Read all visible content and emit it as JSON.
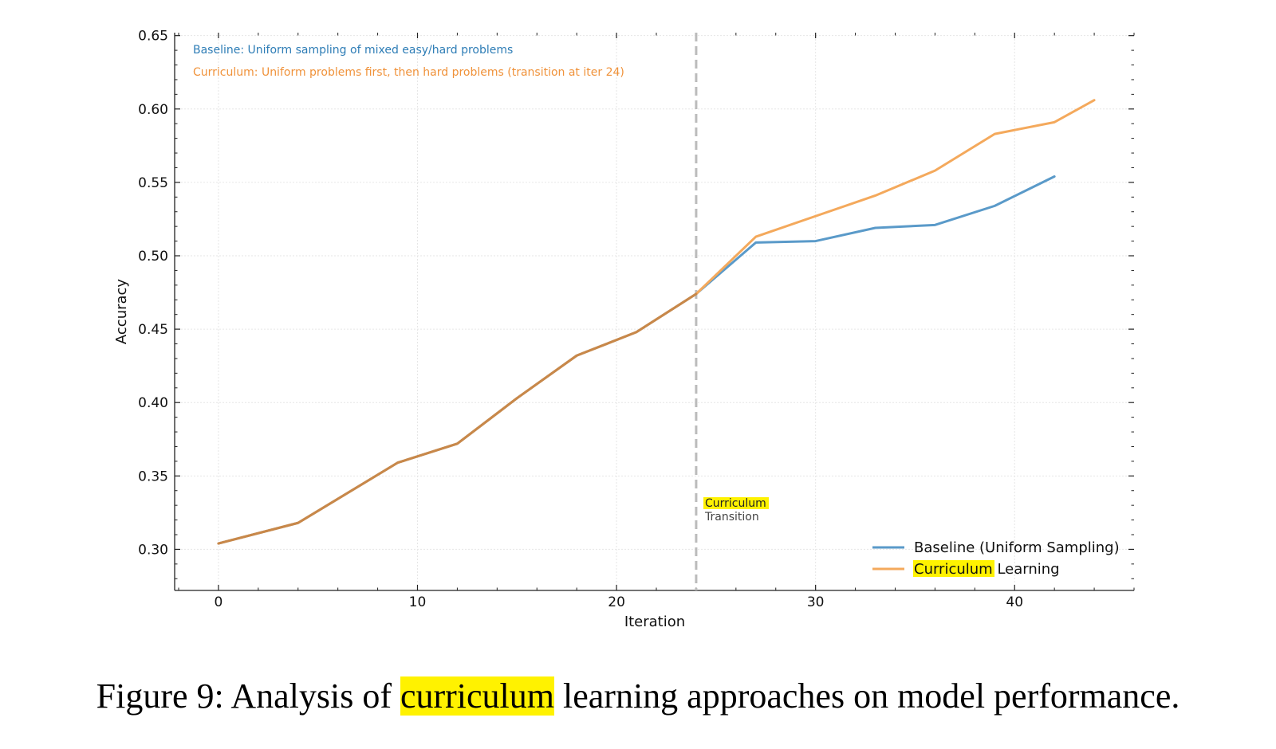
{
  "figure": {
    "caption_prefix": "Figure 9: Analysis of ",
    "caption_highlight": "curriculum",
    "caption_suffix": " learning approaches on model performance.",
    "highlight_color": "#fff200"
  },
  "chart_data": {
    "type": "line",
    "title": "",
    "xlabel": "Iteration",
    "ylabel": "Accuracy",
    "xlim": [
      -2.2,
      46
    ],
    "ylim": [
      0.272,
      0.652
    ],
    "xticks": [
      0,
      10,
      20,
      30,
      40
    ],
    "xtick_labels": [
      "0",
      "10",
      "20",
      "30",
      "40"
    ],
    "yticks": [
      0.3,
      0.35,
      0.4,
      0.45,
      0.5,
      0.55,
      0.6,
      0.65
    ],
    "ytick_labels": [
      "0.30",
      "0.35",
      "0.40",
      "0.45",
      "0.50",
      "0.55",
      "0.60",
      "0.65"
    ],
    "grid": true,
    "legend_position": "bottom-right",
    "series": [
      {
        "name": "Baseline (Uniform Sampling)",
        "color": "#5a9ac9",
        "x": [
          0,
          4,
          9,
          12,
          15,
          18,
          21,
          24,
          27,
          30,
          33,
          36,
          39,
          42
        ],
        "y": [
          0.304,
          0.318,
          0.359,
          0.372,
          0.403,
          0.432,
          0.448,
          0.474,
          0.509,
          0.51,
          0.519,
          0.521,
          0.534,
          0.554
        ]
      },
      {
        "name": "Curriculum Learning",
        "legend_highlight": "Curriculum",
        "legend_rest": " Learning",
        "color": "#f4a95c",
        "x": [
          0,
          4,
          9,
          12,
          15,
          18,
          21,
          24,
          27,
          30,
          33,
          36,
          39,
          42,
          44
        ],
        "y": [
          0.304,
          0.318,
          0.359,
          0.372,
          0.403,
          0.432,
          0.448,
          0.474,
          0.513,
          0.527,
          0.541,
          0.558,
          0.583,
          0.591,
          0.606
        ]
      }
    ],
    "overlap_color": "#c8884a",
    "overlap_until_x": 24,
    "vline": {
      "x": 24,
      "color": "#bbbbbb",
      "label_line1": "Curriculum",
      "label_line2": "Transition"
    },
    "annotations": [
      {
        "text": "Baseline: Uniform sampling of mixed easy/hard problems",
        "color": "#2e7db6"
      },
      {
        "text": "Curriculum: Uniform problems first, then hard problems (transition at iter 24)",
        "color": "#f0923a"
      }
    ]
  }
}
